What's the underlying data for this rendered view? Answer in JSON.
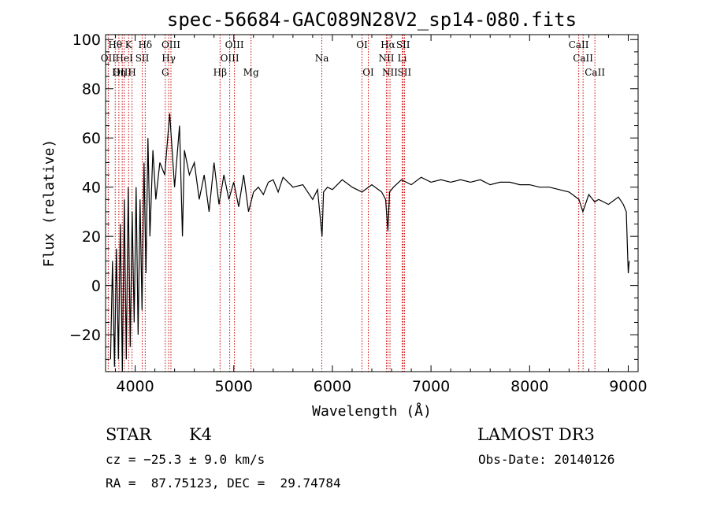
{
  "chart_data": {
    "type": "line",
    "title": "spec-56684-GAC089N28V2_sp14-080.fits",
    "xlabel": "Wavelength (Å)",
    "ylabel": "Flux (relative)",
    "xlim": [
      3700,
      9100
    ],
    "ylim": [
      -35,
      102
    ],
    "x_ticks": [
      4000,
      5000,
      6000,
      7000,
      8000,
      9000
    ],
    "y_ticks": [
      -20,
      0,
      20,
      40,
      60,
      80,
      100
    ],
    "grid": false,
    "series": [
      {
        "x": [
          3750,
          3770,
          3790,
          3810,
          3830,
          3850,
          3870,
          3890,
          3910,
          3930,
          3950,
          3970,
          3990,
          4010,
          4030,
          4050,
          4070,
          4090,
          4110,
          4130,
          4150,
          4180,
          4210,
          4250,
          4300,
          4350,
          4400,
          4450,
          4480,
          4500,
          4550,
          4600,
          4650,
          4700,
          4750,
          4800,
          4850,
          4900,
          4950,
          5000,
          5050,
          5100,
          5150,
          5200,
          5250,
          5300,
          5350,
          5400,
          5450,
          5500,
          5600,
          5700,
          5800,
          5850,
          5895,
          5910,
          5950,
          6000,
          6100,
          6200,
          6300,
          6400,
          6500,
          6540,
          6563,
          6580,
          6620,
          6700,
          6800,
          6900,
          7000,
          7100,
          7200,
          7300,
          7400,
          7500,
          7600,
          7700,
          7800,
          7900,
          8000,
          8100,
          8200,
          8300,
          8400,
          8500,
          8540,
          8600,
          8660,
          8700,
          8800,
          8900,
          8950,
          8980,
          9000,
          9010
        ],
        "y": [
          -30,
          10,
          -33,
          15,
          -30,
          25,
          -35,
          35,
          -30,
          40,
          -25,
          30,
          -15,
          40,
          -20,
          35,
          -10,
          50,
          5,
          60,
          20,
          55,
          35,
          50,
          45,
          70,
          40,
          65,
          20,
          55,
          45,
          50,
          35,
          45,
          30,
          50,
          33,
          45,
          35,
          42,
          32,
          45,
          30,
          38,
          40,
          37,
          42,
          43,
          38,
          44,
          40,
          41,
          35,
          39,
          20,
          38,
          40,
          39,
          43,
          40,
          38,
          41,
          38,
          35,
          22,
          38,
          40,
          43,
          41,
          44,
          42,
          43,
          42,
          43,
          42,
          43,
          41,
          42,
          42,
          41,
          41,
          40,
          40,
          39,
          38,
          35,
          30,
          37,
          34,
          35,
          33,
          36,
          33,
          30,
          5,
          10
        ]
      }
    ],
    "line_labels": [
      {
        "text": "Hθ",
        "w": 3798,
        "row": 1
      },
      {
        "text": "K",
        "w": 3934,
        "row": 1
      },
      {
        "text": "Hδ",
        "w": 4102,
        "row": 1
      },
      {
        "text": "OIII",
        "w": 4363,
        "row": 1
      },
      {
        "text": "OIII",
        "w": 5007,
        "row": 1
      },
      {
        "text": "OI",
        "w": 6300,
        "row": 1
      },
      {
        "text": "Hα",
        "w": 6563,
        "row": 1
      },
      {
        "text": "SII",
        "w": 6717,
        "row": 1
      },
      {
        "text": "CaII",
        "w": 8498,
        "row": 1
      },
      {
        "text": "OII",
        "w": 3727,
        "row": 2
      },
      {
        "text": "HeI",
        "w": 3889,
        "row": 2
      },
      {
        "text": "SII",
        "w": 4072,
        "row": 2
      },
      {
        "text": "Hγ",
        "w": 4340,
        "row": 2
      },
      {
        "text": "OIII",
        "w": 4959,
        "row": 2
      },
      {
        "text": "Na",
        "w": 5893,
        "row": 2
      },
      {
        "text": "NII",
        "w": 6548,
        "row": 2
      },
      {
        "text": "Li",
        "w": 6708,
        "row": 2
      },
      {
        "text": "CaII",
        "w": 8542,
        "row": 2
      },
      {
        "text": "OIII",
        "w": 3869,
        "row": 3
      },
      {
        "text": "Hη",
        "w": 3835,
        "row": 3
      },
      {
        "text": "H",
        "w": 3968,
        "row": 3
      },
      {
        "text": "G",
        "w": 4305,
        "row": 3
      },
      {
        "text": "Hβ",
        "w": 4861,
        "row": 3
      },
      {
        "text": "Mg",
        "w": 5175,
        "row": 3
      },
      {
        "text": "OI",
        "w": 6364,
        "row": 3
      },
      {
        "text": "NII",
        "w": 6584,
        "row": 3
      },
      {
        "text": "SII",
        "w": 6731,
        "row": 3
      },
      {
        "text": "CaII",
        "w": 8662,
        "row": 3
      }
    ],
    "line_positions": [
      3727,
      3798,
      3835,
      3869,
      3889,
      3934,
      3968,
      4072,
      4102,
      4305,
      4340,
      4363,
      4861,
      4959,
      5007,
      5175,
      5893,
      6300,
      6364,
      6548,
      6563,
      6584,
      6708,
      6717,
      6731,
      8498,
      8542,
      8662
    ],
    "line_color": "#cc0000"
  },
  "info": {
    "class": "STAR",
    "subclass": "K4",
    "survey": "LAMOST DR3",
    "cz": "cz = −25.3 ± 9.0 km/s",
    "obs_date": "Obs-Date: 20140126",
    "radec": "RA =  87.75123, DEC =  29.74784"
  }
}
